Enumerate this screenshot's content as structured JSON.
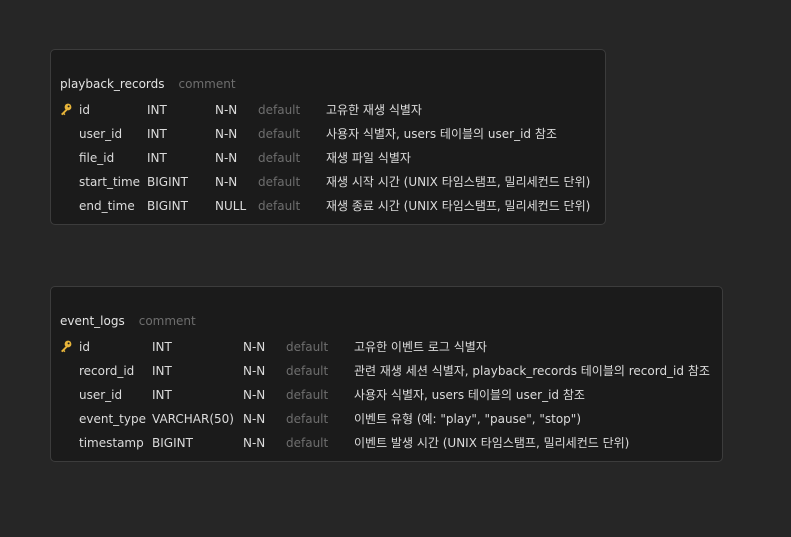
{
  "tables": [
    {
      "name": "playback_records",
      "comment_label": "comment",
      "columns": [
        {
          "primary_key": true,
          "name": "id",
          "type": "INT",
          "nullability": "N-N",
          "default": "default",
          "comment": "고유한 재생 식별자"
        },
        {
          "primary_key": false,
          "name": "user_id",
          "type": "INT",
          "nullability": "N-N",
          "default": "default",
          "comment": "사용자 식별자, users 테이블의 user_id 참조"
        },
        {
          "primary_key": false,
          "name": "file_id",
          "type": "INT",
          "nullability": "N-N",
          "default": "default",
          "comment": "재생 파일 식별자"
        },
        {
          "primary_key": false,
          "name": "start_time",
          "type": "BIGINT",
          "nullability": "N-N",
          "default": "default",
          "comment": "재생 시작 시간 (UNIX 타임스탬프, 밀리세컨드 단위)"
        },
        {
          "primary_key": false,
          "name": "end_time",
          "type": "BIGINT",
          "nullability": "NULL",
          "default": "default",
          "comment": "재생 종료 시간 (UNIX 타임스탬프, 밀리세컨드 단위)"
        }
      ]
    },
    {
      "name": "event_logs",
      "comment_label": "comment",
      "columns": [
        {
          "primary_key": true,
          "name": "id",
          "type": "INT",
          "nullability": "N-N",
          "default": "default",
          "comment": "고유한 이벤트 로그 식별자"
        },
        {
          "primary_key": false,
          "name": "record_id",
          "type": "INT",
          "nullability": "N-N",
          "default": "default",
          "comment": "관련 재생 세션 식별자, playback_records 테이블의 record_id 참조"
        },
        {
          "primary_key": false,
          "name": "user_id",
          "type": "INT",
          "nullability": "N-N",
          "default": "default",
          "comment": "사용자 식별자, users 테이블의 user_id 참조"
        },
        {
          "primary_key": false,
          "name": "event_type",
          "type": "VARCHAR(50)",
          "nullability": "N-N",
          "default": "default",
          "comment": "이벤트 유형 (예: \"play\", \"pause\", \"stop\")"
        },
        {
          "primary_key": false,
          "name": "timestamp",
          "type": "BIGINT",
          "nullability": "N-N",
          "default": "default",
          "comment": "이벤트 발생 시간 (UNIX 타임스탬프, 밀리세컨드 단위)"
        }
      ]
    }
  ],
  "icons": {
    "primary_key": "key-icon"
  },
  "colors": {
    "background": "#262626",
    "card": "#1b1b1b",
    "card_border": "#3c3c3c",
    "key": "#e8b53a",
    "text": "#dcdcdc",
    "muted": "#6e6e6e"
  }
}
